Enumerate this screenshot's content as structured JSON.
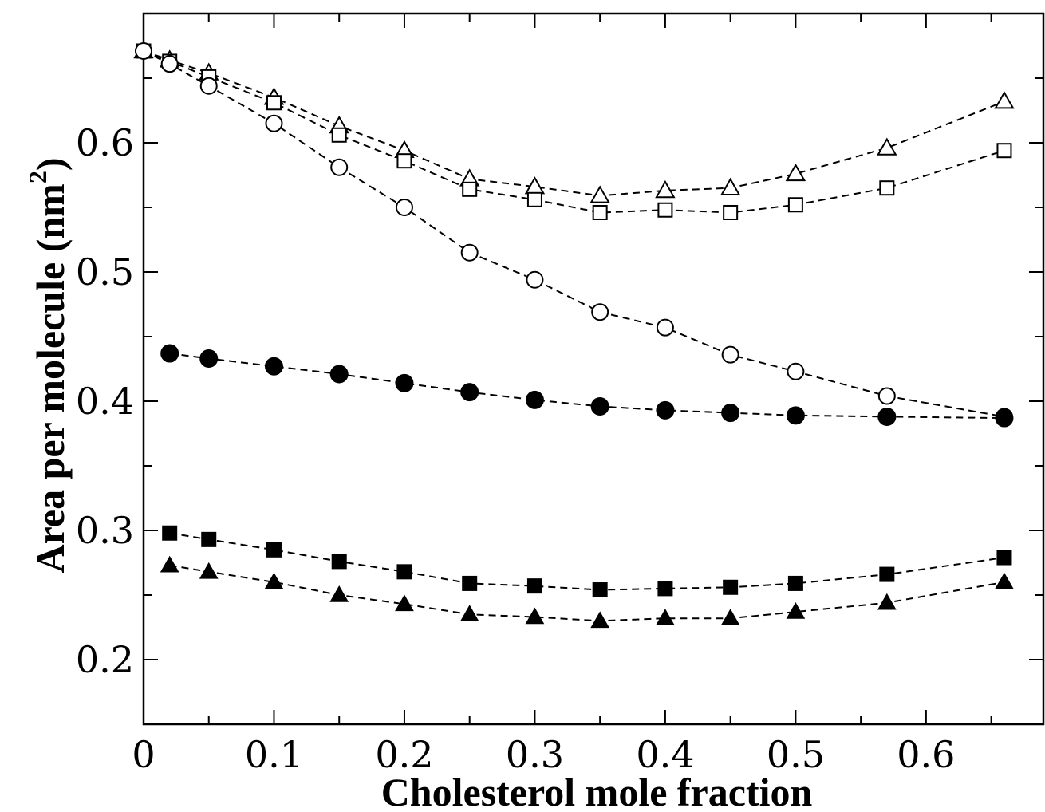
{
  "chart_data": {
    "type": "scatter",
    "title": "",
    "xlabel": "Cholesterol mole fraction",
    "ylabel": "Area per molecule (nm",
    "ylabel_sup": "2",
    "ylabel_close": ")",
    "xlim": [
      0,
      0.69
    ],
    "ylim": [
      0.15,
      0.7
    ],
    "grid": false,
    "x_ticks": [
      "0",
      "0.1",
      "0.2",
      "0.3",
      "0.4",
      "0.5",
      "0.6"
    ],
    "x_tick_values": [
      0,
      0.1,
      0.2,
      0.3,
      0.4,
      0.5,
      0.6
    ],
    "y_ticks": [
      "0.2",
      "0.3",
      "0.4",
      "0.5",
      "0.6"
    ],
    "y_tick_values": [
      0.2,
      0.3,
      0.4,
      0.5,
      0.6
    ],
    "series": [
      {
        "marker": "open-triangle",
        "x": [
          0,
          0.02,
          0.05,
          0.1,
          0.15,
          0.2,
          0.25,
          0.3,
          0.35,
          0.4,
          0.45,
          0.5,
          0.57,
          0.66
        ],
        "y": [
          0.671,
          0.664,
          0.654,
          0.635,
          0.613,
          0.594,
          0.572,
          0.566,
          0.559,
          0.563,
          0.565,
          0.576,
          0.596,
          0.632
        ]
      },
      {
        "marker": "open-square",
        "x": [
          0,
          0.02,
          0.05,
          0.1,
          0.15,
          0.2,
          0.25,
          0.3,
          0.35,
          0.4,
          0.45,
          0.5,
          0.57,
          0.66
        ],
        "y": [
          0.671,
          0.663,
          0.651,
          0.631,
          0.606,
          0.586,
          0.564,
          0.556,
          0.546,
          0.548,
          0.546,
          0.552,
          0.565,
          0.594
        ]
      },
      {
        "marker": "open-circle",
        "x": [
          0,
          0.02,
          0.05,
          0.1,
          0.15,
          0.2,
          0.25,
          0.3,
          0.35,
          0.4,
          0.45,
          0.5,
          0.57,
          0.66
        ],
        "y": [
          0.671,
          0.661,
          0.644,
          0.615,
          0.581,
          0.55,
          0.515,
          0.494,
          0.469,
          0.457,
          0.436,
          0.423,
          0.404,
          0.388
        ]
      },
      {
        "marker": "filled-circle",
        "x": [
          0.02,
          0.05,
          0.1,
          0.15,
          0.2,
          0.25,
          0.3,
          0.35,
          0.4,
          0.45,
          0.5,
          0.57,
          0.66
        ],
        "y": [
          0.437,
          0.433,
          0.427,
          0.421,
          0.414,
          0.407,
          0.401,
          0.396,
          0.393,
          0.391,
          0.389,
          0.388,
          0.387
        ]
      },
      {
        "marker": "filled-square",
        "x": [
          0.02,
          0.05,
          0.1,
          0.15,
          0.2,
          0.25,
          0.3,
          0.35,
          0.4,
          0.45,
          0.5,
          0.57,
          0.66
        ],
        "y": [
          0.298,
          0.293,
          0.285,
          0.276,
          0.268,
          0.259,
          0.257,
          0.254,
          0.255,
          0.256,
          0.259,
          0.266,
          0.279
        ]
      },
      {
        "marker": "filled-triangle",
        "x": [
          0.02,
          0.05,
          0.1,
          0.15,
          0.2,
          0.25,
          0.3,
          0.35,
          0.4,
          0.45,
          0.5,
          0.57,
          0.66
        ],
        "y": [
          0.273,
          0.268,
          0.26,
          0.25,
          0.243,
          0.235,
          0.233,
          0.23,
          0.232,
          0.232,
          0.237,
          0.244,
          0.26
        ]
      }
    ]
  }
}
